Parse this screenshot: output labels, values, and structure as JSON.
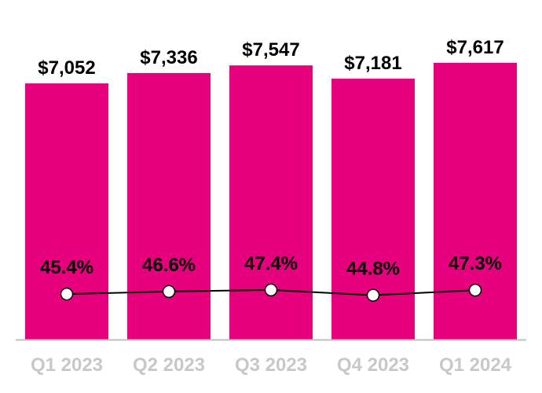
{
  "chart_data": {
    "type": "bar",
    "categories": [
      "Q1 2023",
      "Q2 2023",
      "Q3 2023",
      "Q4 2023",
      "Q1 2024"
    ],
    "series": [
      {
        "type": "bar",
        "values": [
          7052,
          7336,
          7547,
          7181,
          7617
        ],
        "data_labels": [
          "$7,052",
          "$7,336",
          "$7,547",
          "$7,181",
          "$7,617"
        ],
        "color": "#e6007e"
      },
      {
        "type": "line",
        "values": [
          45.4,
          46.6,
          47.4,
          44.8,
          47.3
        ],
        "data_labels": [
          "45.4%",
          "46.6%",
          "47.4%",
          "44.8%",
          "47.3%"
        ],
        "color": "#000000",
        "marker_fill": "#ffffff"
      }
    ],
    "title": "",
    "xlabel": "",
    "ylabel": "",
    "ylim": [
      0,
      8000
    ],
    "grid": false,
    "axis_color": "#bfbfbf",
    "tick_label_color": "#c8c8c8"
  }
}
